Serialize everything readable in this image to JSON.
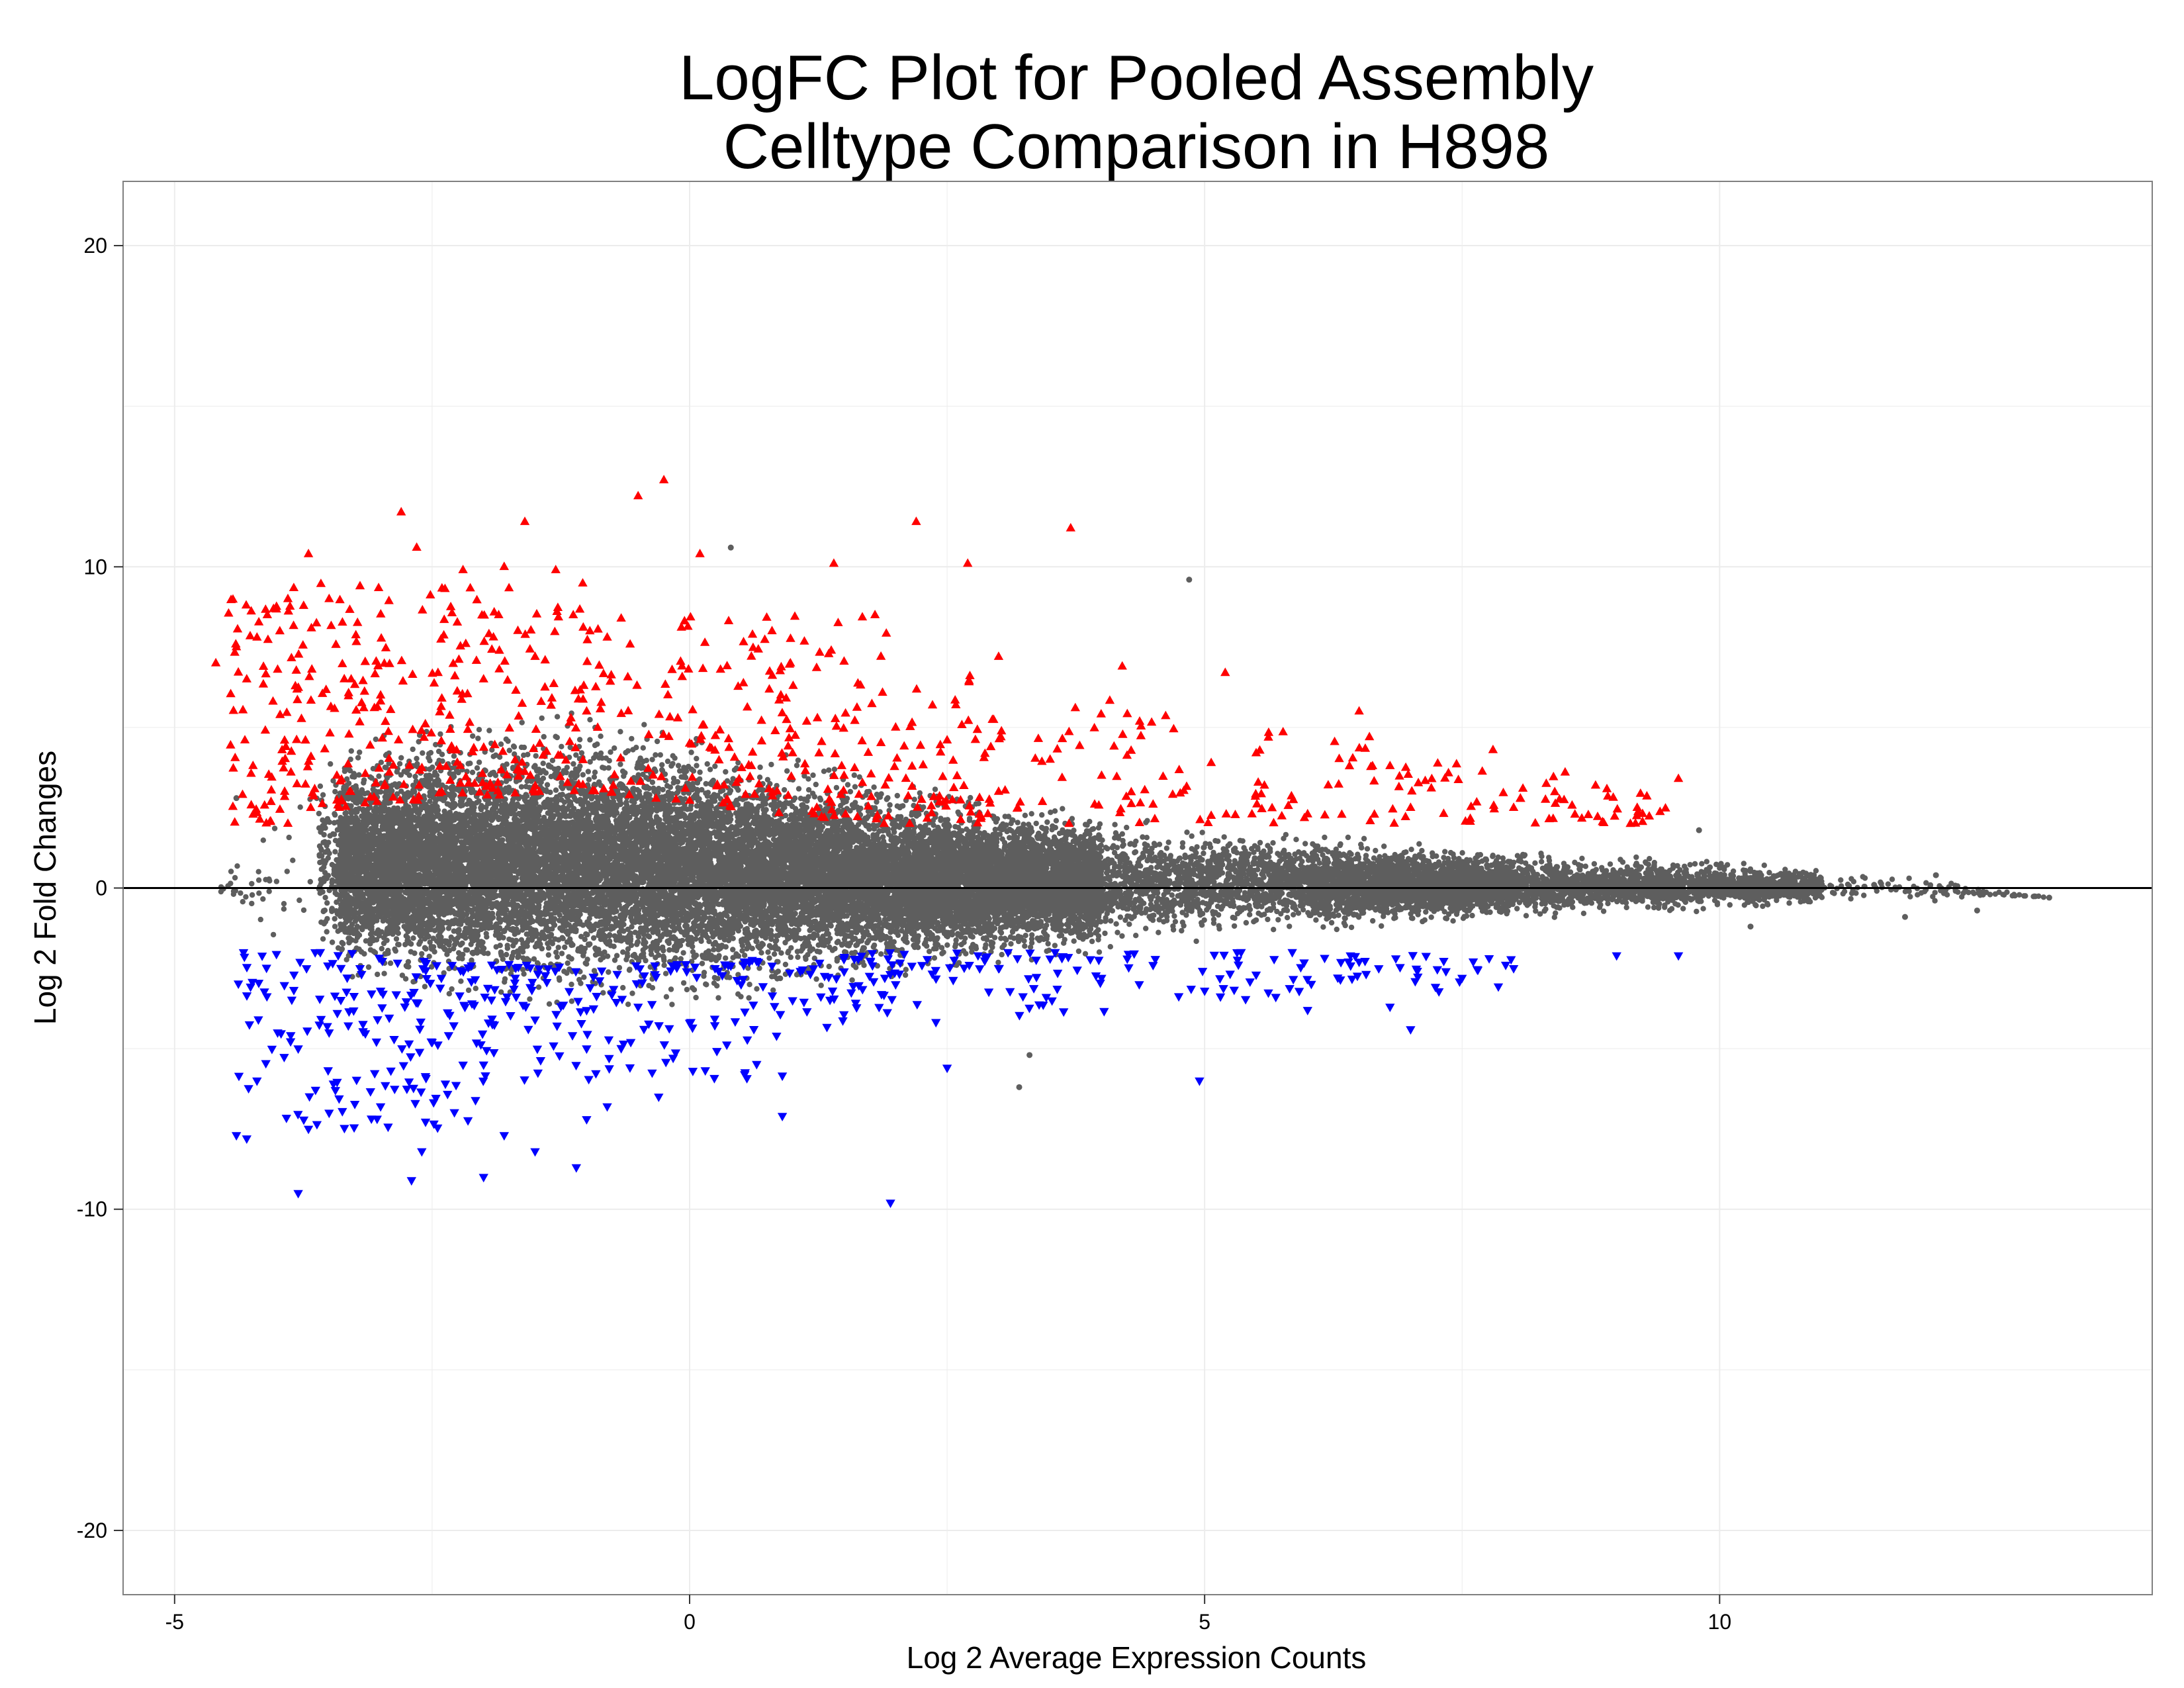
{
  "colors": {
    "background": "#ffffff",
    "panel_border": "#808080",
    "grid": "#ececec",
    "zero_line": "#000000",
    "points_gray": "#5e5e5e",
    "points_up": "#ff0000",
    "points_down": "#0000ff"
  },
  "chart_data": {
    "type": "scatter",
    "title_lines": [
      "LogFC Plot for Pooled Assembly",
      "Celltype Comparison in H898"
    ],
    "xlabel": "Log 2 Average Expression Counts",
    "ylabel": "Log 2 Fold Changes",
    "xlim": [
      -5.5,
      14.2
    ],
    "ylim": [
      -22,
      22
    ],
    "x_ticks": [
      -5,
      0,
      5,
      10
    ],
    "x_tick_labels": [
      "-5",
      "0",
      "5",
      "10"
    ],
    "y_ticks": [
      -20,
      -10,
      0,
      10,
      20
    ],
    "y_tick_labels": [
      "-20",
      "-10",
      "0",
      "10",
      "20"
    ],
    "grid": true,
    "hline": 0,
    "series": [
      {
        "marker": "circle",
        "color": "#5e5e5e",
        "approximate_count": 60000,
        "envelope": [
          {
            "x": -4.6,
            "y_min": -0.2,
            "y_max": 0.2
          },
          {
            "x": -3.5,
            "y_min": -3.0,
            "y_max": 4.5
          },
          {
            "x": -2.5,
            "y_min": -3.5,
            "y_max": 5.0
          },
          {
            "x": -1.0,
            "y_min": -3.8,
            "y_max": 5.5
          },
          {
            "x": 0.5,
            "y_min": -3.5,
            "y_max": 4.5
          },
          {
            "x": 2.0,
            "y_min": -2.8,
            "y_max": 3.3
          },
          {
            "x": 4.0,
            "y_min": -2.0,
            "y_max": 2.3
          },
          {
            "x": 6.0,
            "y_min": -1.4,
            "y_max": 1.7
          },
          {
            "x": 8.0,
            "y_min": -1.0,
            "y_max": 1.2
          },
          {
            "x": 10.0,
            "y_min": -0.7,
            "y_max": 0.8
          },
          {
            "x": 12.0,
            "y_min": -0.5,
            "y_max": 0.5
          },
          {
            "x": 13.2,
            "y_min": -0.3,
            "y_max": -0.3
          }
        ],
        "points": [
          {
            "x": 4.85,
            "y": 9.6
          },
          {
            "x": 0.4,
            "y": 10.6
          },
          {
            "x": 3.2,
            "y": -6.2
          },
          {
            "x": 3.3,
            "y": -5.2
          },
          {
            "x": -4.4,
            "y": 2.8
          },
          {
            "x": 12.1,
            "y": 0.4
          },
          {
            "x": 12.5,
            "y": -0.7
          },
          {
            "x": 13.2,
            "y": -0.3
          },
          {
            "x": 11.8,
            "y": -0.9
          },
          {
            "x": 11.5,
            "y": 0.1
          },
          {
            "x": 10.3,
            "y": -1.2
          },
          {
            "x": 9.8,
            "y": 1.8
          }
        ]
      },
      {
        "marker": "triangle-up",
        "color": "#ff0000",
        "approximate_count": 1000,
        "points": [
          {
            "x": -4.6,
            "y": 7.0
          },
          {
            "x": -4.4,
            "y": 7.5
          },
          {
            "x": -4.3,
            "y": 6.5
          },
          {
            "x": -4.2,
            "y": 7.8
          },
          {
            "x": -4.1,
            "y": 8.5
          },
          {
            "x": -4.0,
            "y": 6.8
          },
          {
            "x": -3.9,
            "y": 9.0
          },
          {
            "x": -3.7,
            "y": 10.4
          },
          {
            "x": -3.5,
            "y": 9.0
          },
          {
            "x": -3.2,
            "y": 9.4
          },
          {
            "x": -2.8,
            "y": 11.7
          },
          {
            "x": -2.65,
            "y": 10.6
          },
          {
            "x": -2.2,
            "y": 9.9
          },
          {
            "x": -1.8,
            "y": 10.0
          },
          {
            "x": -1.6,
            "y": 11.4
          },
          {
            "x": -1.3,
            "y": 9.9
          },
          {
            "x": -0.5,
            "y": 12.2
          },
          {
            "x": -0.25,
            "y": 12.7
          },
          {
            "x": 0.1,
            "y": 10.4
          },
          {
            "x": 1.4,
            "y": 10.1
          },
          {
            "x": 2.2,
            "y": 11.4
          },
          {
            "x": 2.7,
            "y": 10.1
          },
          {
            "x": 3.7,
            "y": 11.2
          },
          {
            "x": 5.2,
            "y": 6.7
          },
          {
            "x": 6.5,
            "y": 5.5
          },
          {
            "x": 7.8,
            "y": 4.3
          },
          {
            "x": 8.5,
            "y": 3.6
          },
          {
            "x": 9.6,
            "y": 3.4
          },
          {
            "x": 9.2,
            "y": 2.5
          },
          {
            "x": 8.0,
            "y": 2.5
          },
          {
            "x": 7.0,
            "y": 2.5
          },
          {
            "x": 6.0,
            "y": 2.3
          },
          {
            "x": 4.5,
            "y": 2.6
          },
          {
            "x": 3.0,
            "y": 3.0
          },
          {
            "x": 1.5,
            "y": 3.5
          },
          {
            "x": 0.0,
            "y": 4.5
          },
          {
            "x": -1.0,
            "y": 5.5
          },
          {
            "x": -2.0,
            "y": 6.5
          },
          {
            "x": -3.0,
            "y": 6.0
          },
          {
            "x": -3.3,
            "y": 3.0
          },
          {
            "x": -3.4,
            "y": 2.5
          },
          {
            "x": 0.6,
            "y": 3.8
          },
          {
            "x": 1.0,
            "y": 4.2
          },
          {
            "x": 2.0,
            "y": 5.0
          },
          {
            "x": 2.5,
            "y": 4.6
          },
          {
            "x": 3.5,
            "y": 4.0
          },
          {
            "x": 4.0,
            "y": 3.5
          },
          {
            "x": 5.5,
            "y": 4.2
          },
          {
            "x": 6.2,
            "y": 3.2
          },
          {
            "x": 6.8,
            "y": 3.8
          },
          {
            "x": -1.5,
            "y": 7.2
          },
          {
            "x": -0.8,
            "y": 7.8
          },
          {
            "x": 0.3,
            "y": 6.8
          },
          {
            "x": 0.8,
            "y": 8.0
          },
          {
            "x": 1.8,
            "y": 8.5
          },
          {
            "x": 3.0,
            "y": 7.2
          },
          {
            "x": 4.2,
            "y": 6.9
          },
          {
            "x": 6.6,
            "y": 4.7
          }
        ]
      },
      {
        "marker": "triangle-down",
        "color": "#0000ff",
        "approximate_count": 700,
        "points": [
          {
            "x": -4.4,
            "y": -7.7
          },
          {
            "x": -4.3,
            "y": -7.8
          },
          {
            "x": -4.2,
            "y": -6.0
          },
          {
            "x": -3.8,
            "y": -9.5
          },
          {
            "x": -3.7,
            "y": -7.5
          },
          {
            "x": -3.5,
            "y": -7.0
          },
          {
            "x": -3.0,
            "y": -6.8
          },
          {
            "x": -2.7,
            "y": -9.1
          },
          {
            "x": -2.6,
            "y": -8.2
          },
          {
            "x": -2.0,
            "y": -9.0
          },
          {
            "x": -1.8,
            "y": -7.7
          },
          {
            "x": -1.5,
            "y": -8.2
          },
          {
            "x": -1.1,
            "y": -8.7
          },
          {
            "x": -1.0,
            "y": -7.2
          },
          {
            "x": -0.8,
            "y": -6.8
          },
          {
            "x": -0.3,
            "y": -6.5
          },
          {
            "x": 0.9,
            "y": -7.1
          },
          {
            "x": 1.95,
            "y": -9.8
          },
          {
            "x": 2.5,
            "y": -5.6
          },
          {
            "x": 4.95,
            "y": -6.0
          },
          {
            "x": 6.0,
            "y": -3.8
          },
          {
            "x": 7.0,
            "y": -4.4
          },
          {
            "x": 6.8,
            "y": -3.7
          },
          {
            "x": 8.0,
            "y": -2.5
          },
          {
            "x": 9.0,
            "y": -2.1
          },
          {
            "x": 9.6,
            "y": -2.1
          },
          {
            "x": 7.5,
            "y": -2.8
          },
          {
            "x": 5.5,
            "y": -2.7
          },
          {
            "x": 4.5,
            "y": -2.4
          },
          {
            "x": 3.0,
            "y": -2.5
          },
          {
            "x": 2.0,
            "y": -3.0
          },
          {
            "x": 1.0,
            "y": -3.5
          },
          {
            "x": 0.0,
            "y": -4.2
          },
          {
            "x": -1.0,
            "y": -5.0
          },
          {
            "x": -2.0,
            "y": -5.5
          },
          {
            "x": -3.0,
            "y": -3.2
          },
          {
            "x": -3.2,
            "y": -2.5
          },
          {
            "x": -3.5,
            "y": -4.5
          },
          {
            "x": -3.8,
            "y": -5.0
          },
          {
            "x": -4.0,
            "y": -4.5
          },
          {
            "x": 0.5,
            "y": -3.0
          },
          {
            "x": 1.5,
            "y": -2.6
          },
          {
            "x": 2.8,
            "y": -2.1
          },
          {
            "x": 3.5,
            "y": -2.2
          },
          {
            "x": 4.0,
            "y": -2.8
          },
          {
            "x": 5.0,
            "y": -3.2
          },
          {
            "x": 6.5,
            "y": -2.3
          },
          {
            "x": -0.5,
            "y": -3.7
          },
          {
            "x": -1.5,
            "y": -4.1
          },
          {
            "x": -2.5,
            "y": -4.8
          }
        ]
      }
    ]
  }
}
